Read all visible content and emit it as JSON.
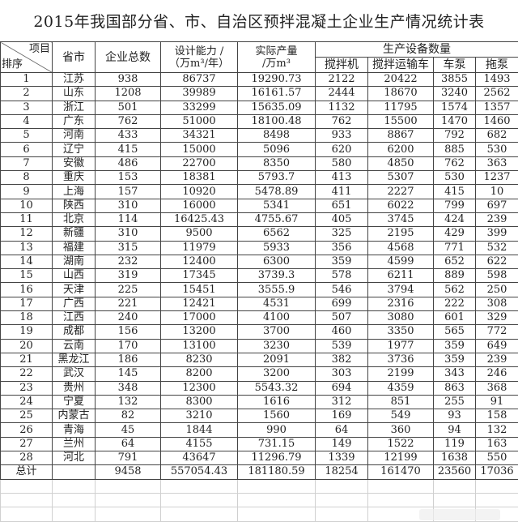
{
  "title": "2015年我国部分省、市、自治区预拌混凝土企业生产情况统计表",
  "header": {
    "item": "项目",
    "rank": "排序",
    "province": "省市",
    "enterprises": "企业总数",
    "capacity_1": "设计能力 /",
    "capacity_2": "（万m³/年）",
    "output_1": "实际产量",
    "output_2": "/万m³",
    "equipment": "生产设备数量",
    "mixer": "搅拌机",
    "truck": "搅拌运输车",
    "pump_truck": "车泵",
    "trailer_pump": "拖泵"
  },
  "rows": [
    [
      "1",
      "江苏",
      "938",
      "86737",
      "19290.73",
      "2122",
      "20422",
      "3855",
      "1493"
    ],
    [
      "2",
      "山东",
      "1208",
      "39989",
      "16161.57",
      "2444",
      "18670",
      "3240",
      "2562"
    ],
    [
      "3",
      "浙江",
      "501",
      "33299",
      "15635.09",
      "1132",
      "11795",
      "1574",
      "1357"
    ],
    [
      "4",
      "广东",
      "762",
      "51000",
      "18100.48",
      "762",
      "15500",
      "1470",
      "1460"
    ],
    [
      "5",
      "河南",
      "433",
      "34321",
      "8498",
      "933",
      "8867",
      "792",
      "682"
    ],
    [
      "6",
      "辽宁",
      "415",
      "15000",
      "5096",
      "620",
      "6200",
      "885",
      "530"
    ],
    [
      "7",
      "安徽",
      "486",
      "22700",
      "8350",
      "580",
      "4850",
      "762",
      "363"
    ],
    [
      "8",
      "重庆",
      "153",
      "18381",
      "5793.7",
      "413",
      "5307",
      "530",
      "1237"
    ],
    [
      "9",
      "上海",
      "157",
      "10920",
      "5478.89",
      "411",
      "2227",
      "415",
      "10"
    ],
    [
      "10",
      "陕西",
      "310",
      "16000",
      "5341",
      "651",
      "6022",
      "799",
      "697"
    ],
    [
      "11",
      "北京",
      "114",
      "16425.43",
      "4755.67",
      "405",
      "3745",
      "424",
      "239"
    ],
    [
      "12",
      "新疆",
      "310",
      "9500",
      "6562",
      "325",
      "2195",
      "429",
      "399"
    ],
    [
      "13",
      "福建",
      "315",
      "11979",
      "5933",
      "356",
      "4568",
      "771",
      "532"
    ],
    [
      "14",
      "湖南",
      "232",
      "12400",
      "6300",
      "359",
      "4599",
      "652",
      "622"
    ],
    [
      "15",
      "山西",
      "319",
      "17345",
      "3739.3",
      "578",
      "6211",
      "889",
      "598"
    ],
    [
      "16",
      "天津",
      "225",
      "15451",
      "3555.9",
      "546",
      "3794",
      "562",
      "250"
    ],
    [
      "17",
      "广西",
      "221",
      "12421",
      "4531",
      "699",
      "2316",
      "222",
      "308"
    ],
    [
      "18",
      "江西",
      "240",
      "17000",
      "4100",
      "507",
      "3080",
      "601",
      "329"
    ],
    [
      "19",
      "成都",
      "156",
      "13200",
      "3700",
      "460",
      "3350",
      "565",
      "772"
    ],
    [
      "20",
      "云南",
      "170",
      "13100",
      "3230",
      "539",
      "1977",
      "359",
      "649"
    ],
    [
      "21",
      "黑龙江",
      "186",
      "8230",
      "2091",
      "382",
      "3736",
      "359",
      "239"
    ],
    [
      "22",
      "武汉",
      "145",
      "8200",
      "3200",
      "303",
      "2199",
      "343",
      "246"
    ],
    [
      "23",
      "贵州",
      "348",
      "12300",
      "5543.32",
      "694",
      "4359",
      "863",
      "368"
    ],
    [
      "24",
      "宁夏",
      "132",
      "8300",
      "1616",
      "312",
      "851",
      "255",
      "91"
    ],
    [
      "25",
      "内蒙古",
      "82",
      "3210",
      "1560",
      "169",
      "549",
      "93",
      "158"
    ],
    [
      "26",
      "青海",
      "45",
      "1844",
      "990",
      "64",
      "360",
      "94",
      "132"
    ],
    [
      "27",
      "兰州",
      "64",
      "4155",
      "731.15",
      "149",
      "1522",
      "119",
      "163"
    ],
    [
      "28",
      "河北",
      "791",
      "43647",
      "11296.79",
      "1339",
      "12199",
      "1638",
      "550"
    ]
  ],
  "total": [
    "总计",
    "",
    "9458",
    "557054.43",
    "181180.59",
    "18254",
    "161470",
    "23560",
    "17036"
  ]
}
